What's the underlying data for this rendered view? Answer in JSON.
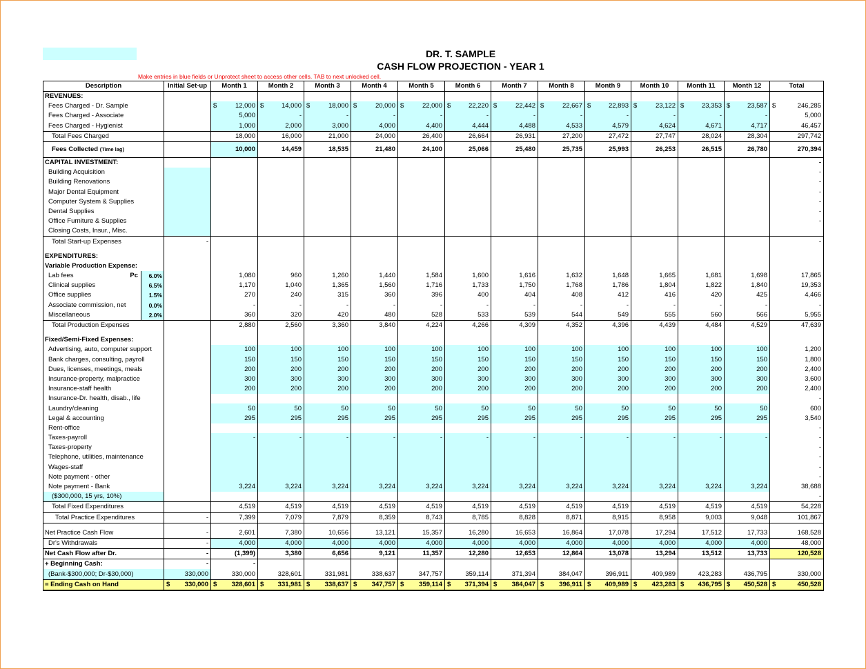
{
  "title": "DR. T. SAMPLE",
  "subtitle": "CASH FLOW PROJECTION - YEAR 1",
  "note": "Make entries in blue fields or Unprotect sheet to access other cells. TAB to next unlocked cell.",
  "headers": [
    "Description",
    "Initial Set-up",
    "Month 1",
    "Month 2",
    "Month 3",
    "Month 4",
    "Month 5",
    "Month 6",
    "Month 7",
    "Month 8",
    "Month 9",
    "Month 10",
    "Month 11",
    "Month 12",
    "Total"
  ],
  "colors": {
    "input_blue": "#ccffff",
    "highlight_yellow": "#ffff99",
    "note_red": "#ee0000"
  },
  "rows": [
    {
      "label": "REVENUES:",
      "bold": true,
      "v": []
    },
    {
      "label": "Fees Charged - Dr. Sample",
      "ind": 1,
      "dollar": true,
      "blue": "m",
      "v": [
        "",
        "12,000",
        "14,000",
        "18,000",
        "20,000",
        "22,000",
        "22,220",
        "22,442",
        "22,667",
        "22,893",
        "23,122",
        "23,353",
        "23,587",
        "246,285"
      ]
    },
    {
      "label": "Fees Charged - Associate",
      "ind": 1,
      "blue": "m",
      "v": [
        "",
        "5,000",
        "-",
        "-",
        "-",
        "-",
        "-",
        "-",
        "-",
        "-",
        "-",
        "-",
        "-",
        "5,000"
      ]
    },
    {
      "label": "Fees Charged - Hygienist",
      "ind": 1,
      "blue": "m",
      "v": [
        "",
        "1,000",
        "2,000",
        "3,000",
        "4,000",
        "4,400",
        "4,444",
        "4,488",
        "4,533",
        "4,579",
        "4,624",
        "4,671",
        "4,717",
        "46,457"
      ]
    },
    {
      "label": "Total Fees Charged",
      "ind": 2,
      "top": true,
      "v": [
        "",
        "18,000",
        "16,000",
        "21,000",
        "24,000",
        "26,400",
        "26,664",
        "26,931",
        "27,200",
        "27,472",
        "27,747",
        "28,024",
        "28,304",
        "297,742"
      ]
    },
    {
      "label": "Fees Collected",
      "sub": "(Time lag)",
      "ind": 2,
      "bold": true,
      "tall": true,
      "top": true,
      "blue": "m1",
      "v": [
        "",
        "10,000",
        "14,459",
        "18,535",
        "21,480",
        "24,100",
        "25,066",
        "25,480",
        "25,735",
        "25,993",
        "26,253",
        "26,515",
        "26,780",
        "270,394"
      ]
    },
    {
      "label": "CAPITAL INVESTMENT:",
      "bold": true,
      "top": true,
      "v": [
        "",
        "",
        "",
        "",
        "",
        "",
        "",
        "",
        "",
        "",
        "",
        "",
        "",
        "-"
      ]
    },
    {
      "label": "Building Acquisition",
      "ind": 1,
      "blue": "i",
      "v": [
        "",
        "",
        "",
        "",
        "",
        "",
        "",
        "",
        "",
        "",
        "",
        "",
        "",
        "-"
      ]
    },
    {
      "label": "Building Renovations",
      "ind": 1,
      "blue": "i",
      "v": [
        "",
        "",
        "",
        "",
        "",
        "",
        "",
        "",
        "",
        "",
        "",
        "",
        "",
        "-"
      ]
    },
    {
      "label": "Major Dental Equipment",
      "ind": 1,
      "blue": "i",
      "v": [
        "",
        "",
        "",
        "",
        "",
        "",
        "",
        "",
        "",
        "",
        "",
        "",
        "",
        "-"
      ]
    },
    {
      "label": "Computer System & Supplies",
      "ind": 1,
      "blue": "i",
      "v": [
        "",
        "",
        "",
        "",
        "",
        "",
        "",
        "",
        "",
        "",
        "",
        "",
        "",
        "-"
      ]
    },
    {
      "label": "Dental Supplies",
      "ind": 1,
      "blue": "i",
      "v": [
        "",
        "",
        "",
        "",
        "",
        "",
        "",
        "",
        "",
        "",
        "",
        "",
        "",
        "-"
      ]
    },
    {
      "label": "Office Furniture & Supplies",
      "ind": 1,
      "blue": "i",
      "v": [
        "",
        "",
        "",
        "",
        "",
        "",
        "",
        "",
        "",
        "",
        "",
        "",
        "",
        "-"
      ]
    },
    {
      "label": "Closing Costs, Insur., Misc.",
      "ind": 1,
      "blue": "i",
      "v": []
    },
    {
      "label": "Total Start-up Expenses",
      "ind": 2,
      "top": true,
      "v": [
        "-",
        "",
        "",
        "",
        "",
        "",
        "",
        "",
        "",
        "",
        "",
        "",
        "",
        "-"
      ]
    },
    {
      "label": "",
      "gap": true,
      "v": []
    },
    {
      "label": "EXPENDITURES:",
      "bold": true,
      "v": []
    },
    {
      "label": "Variable Production Expense:",
      "bold": true,
      "v": []
    },
    {
      "label": "Lab fees",
      "ind": 1,
      "pc": "Pc",
      "pct": "6.0%",
      "v": [
        "",
        "1,080",
        "960",
        "1,260",
        "1,440",
        "1,584",
        "1,600",
        "1,616",
        "1,632",
        "1,648",
        "1,665",
        "1,681",
        "1,698",
        "17,865"
      ]
    },
    {
      "label": "Clinical supplies",
      "ind": 1,
      "pct": "6.5%",
      "v": [
        "",
        "1,170",
        "1,040",
        "1,365",
        "1,560",
        "1,716",
        "1,733",
        "1,750",
        "1,768",
        "1,786",
        "1,804",
        "1,822",
        "1,840",
        "19,353"
      ]
    },
    {
      "label": "Office supplies",
      "ind": 1,
      "pct": "1.5%",
      "v": [
        "",
        "270",
        "240",
        "315",
        "360",
        "396",
        "400",
        "404",
        "408",
        "412",
        "416",
        "420",
        "425",
        "4,466"
      ]
    },
    {
      "label": "Associate commission, net",
      "ind": 1,
      "pct": "0.0%",
      "v": [
        "",
        "-",
        "-",
        "-",
        "-",
        "-",
        "-",
        "-",
        "-",
        "-",
        "-",
        "-",
        "-",
        "-"
      ]
    },
    {
      "label": "Miscellaneous",
      "ind": 1,
      "pct": "2.0%",
      "v": [
        "",
        "360",
        "320",
        "420",
        "480",
        "528",
        "533",
        "539",
        "544",
        "549",
        "555",
        "560",
        "566",
        "5,955"
      ]
    },
    {
      "label": "Total Production Expenses",
      "ind": 2,
      "top": true,
      "v": [
        "",
        "2,880",
        "2,560",
        "3,360",
        "3,840",
        "4,224",
        "4,266",
        "4,309",
        "4,352",
        "4,396",
        "4,439",
        "4,484",
        "4,529",
        "47,639"
      ]
    },
    {
      "label": "",
      "gap": true,
      "v": []
    },
    {
      "label": "Fixed/Semi-Fixed Expenses:",
      "bold": true,
      "v": []
    },
    {
      "label": "Advertising, auto, computer support",
      "ind": 1,
      "blue": "m",
      "v": [
        "",
        "100",
        "100",
        "100",
        "100",
        "100",
        "100",
        "100",
        "100",
        "100",
        "100",
        "100",
        "100",
        "1,200"
      ]
    },
    {
      "label": "Bank charges, consulting, payroll",
      "ind": 1,
      "blue": "m",
      "v": [
        "",
        "150",
        "150",
        "150",
        "150",
        "150",
        "150",
        "150",
        "150",
        "150",
        "150",
        "150",
        "150",
        "1,800"
      ]
    },
    {
      "label": "Dues, licenses, meetings, meals",
      "ind": 1,
      "blue": "m",
      "v": [
        "",
        "200",
        "200",
        "200",
        "200",
        "200",
        "200",
        "200",
        "200",
        "200",
        "200",
        "200",
        "200",
        "2,400"
      ]
    },
    {
      "label": "Insurance-property, malpractice",
      "ind": 1,
      "blue": "m",
      "v": [
        "",
        "300",
        "300",
        "300",
        "300",
        "300",
        "300",
        "300",
        "300",
        "300",
        "300",
        "300",
        "300",
        "3,600"
      ]
    },
    {
      "label": "Insurance-staff health",
      "ind": 1,
      "blue": "m",
      "v": [
        "",
        "200",
        "200",
        "200",
        "200",
        "200",
        "200",
        "200",
        "200",
        "200",
        "200",
        "200",
        "200",
        "2,400"
      ]
    },
    {
      "label": "Insurance-Dr. health, disab., life",
      "ind": 1,
      "v": [
        "",
        "",
        "",
        "",
        "",
        "",
        "",
        "",
        "",
        "",
        "",
        "",
        "",
        "-"
      ]
    },
    {
      "label": "Laundry/cleaning",
      "ind": 1,
      "blue": "m",
      "v": [
        "",
        "50",
        "50",
        "50",
        "50",
        "50",
        "50",
        "50",
        "50",
        "50",
        "50",
        "50",
        "50",
        "600"
      ]
    },
    {
      "label": "Legal & accounting",
      "ind": 1,
      "blue": "m",
      "v": [
        "",
        "295",
        "295",
        "295",
        "295",
        "295",
        "295",
        "295",
        "295",
        "295",
        "295",
        "295",
        "295",
        "3,540"
      ]
    },
    {
      "label": "Rent-office",
      "ind": 1,
      "v": [
        "",
        "",
        "",
        "",
        "",
        "",
        "",
        "",
        "",
        "",
        "",
        "",
        "",
        "-"
      ]
    },
    {
      "label": "Taxes-payroll",
      "ind": 1,
      "blue": "m",
      "v": [
        "",
        "-",
        "-",
        "-",
        "-",
        "-",
        "-",
        "-",
        "-",
        "-",
        "-",
        "-",
        "-",
        "-"
      ]
    },
    {
      "label": "Taxes-property",
      "ind": 1,
      "blue": "m",
      "v": [
        "",
        "",
        "",
        "",
        "",
        "",
        "",
        "",
        "",
        "",
        "",
        "",
        "",
        "-"
      ]
    },
    {
      "label": "Telephone, utilities, maintenance",
      "ind": 1,
      "blue": "m",
      "v": [
        "",
        "",
        "",
        "",
        "",
        "",
        "",
        "",
        "",
        "",
        "",
        "",
        "",
        "-"
      ]
    },
    {
      "label": "Wages-staff",
      "ind": 1,
      "blue": "m",
      "v": [
        "",
        "",
        "",
        "",
        "",
        "",
        "",
        "",
        "",
        "",
        "",
        "",
        "",
        "-"
      ]
    },
    {
      "label": "Note payment - other",
      "ind": 1,
      "blue": "m",
      "v": [
        "",
        "",
        "",
        "",
        "",
        "",
        "",
        "",
        "",
        "",
        "",
        "",
        "",
        "-"
      ]
    },
    {
      "label": "Note payment - Bank",
      "ind": 1,
      "blue": "m",
      "v": [
        "",
        "3,224",
        "3,224",
        "3,224",
        "3,224",
        "3,224",
        "3,224",
        "3,224",
        "3,224",
        "3,224",
        "3,224",
        "3,224",
        "3,224",
        "38,688"
      ]
    },
    {
      "label": "($300,000, 15 yrs, 10%)",
      "ind": 2,
      "blue": "l",
      "v": [
        "",
        "",
        "",
        "",
        "",
        "",
        "",
        "",
        "",
        "",
        "",
        "",
        "",
        "-"
      ]
    },
    {
      "label": "Total Fixed Expenditures",
      "ind": 2,
      "top": true,
      "v": [
        "",
        "4,519",
        "4,519",
        "4,519",
        "4,519",
        "4,519",
        "4,519",
        "4,519",
        "4,519",
        "4,519",
        "4,519",
        "4,519",
        "4,519",
        "54,228"
      ]
    },
    {
      "label": "Total Practice Expenditures",
      "ind": 3,
      "top": true,
      "v": [
        "-",
        "7,399",
        "7,079",
        "7,879",
        "8,359",
        "8,743",
        "8,785",
        "8,828",
        "8,871",
        "8,915",
        "8,958",
        "9,003",
        "9,048",
        "101,867"
      ]
    },
    {
      "label": "",
      "gap": true,
      "top": true,
      "v": []
    },
    {
      "label": "Net Practice Cash Flow",
      "v": [
        "-",
        "2,601",
        "7,380",
        "10,656",
        "13,121",
        "15,357",
        "16,280",
        "16,653",
        "16,864",
        "17,078",
        "17,294",
        "17,512",
        "17,733",
        "168,528"
      ]
    },
    {
      "label": "Dr's Withdrawals",
      "ind": 1,
      "top": true,
      "blue": "m",
      "v": [
        "-",
        "4,000",
        "4,000",
        "4,000",
        "4,000",
        "4,000",
        "4,000",
        "4,000",
        "4,000",
        "4,000",
        "4,000",
        "4,000",
        "4,000",
        "48,000"
      ]
    },
    {
      "label": "Net Cash Flow after Dr.",
      "bold": true,
      "top": true,
      "ytotal": true,
      "v": [
        "-",
        "(1,399)",
        "3,380",
        "6,656",
        "9,121",
        "11,357",
        "12,280",
        "12,653",
        "12,864",
        "13,078",
        "13,294",
        "13,512",
        "13,733",
        "120,528"
      ]
    },
    {
      "label": "+ Beginning Cash:",
      "bold": true,
      "top": true,
      "v": [
        "-",
        "-"
      ]
    },
    {
      "label": "(Bank-$300,000; Dr-$30,000)",
      "ind": 1,
      "blue": "li",
      "v": [
        "330,000",
        "330,000",
        "328,601",
        "331,981",
        "338,637",
        "347,757",
        "359,114",
        "371,394",
        "384,047",
        "396,911",
        "409,989",
        "423,283",
        "436,795",
        "330,000"
      ]
    },
    {
      "label": "= Ending Cash on Hand",
      "bold": true,
      "ending": true,
      "dollar": true,
      "v": [
        "330,000",
        "328,601",
        "331,981",
        "338,637",
        "347,757",
        "359,114",
        "371,394",
        "384,047",
        "396,911",
        "409,989",
        "423,283",
        "436,795",
        "450,528",
        "450,528"
      ]
    }
  ]
}
